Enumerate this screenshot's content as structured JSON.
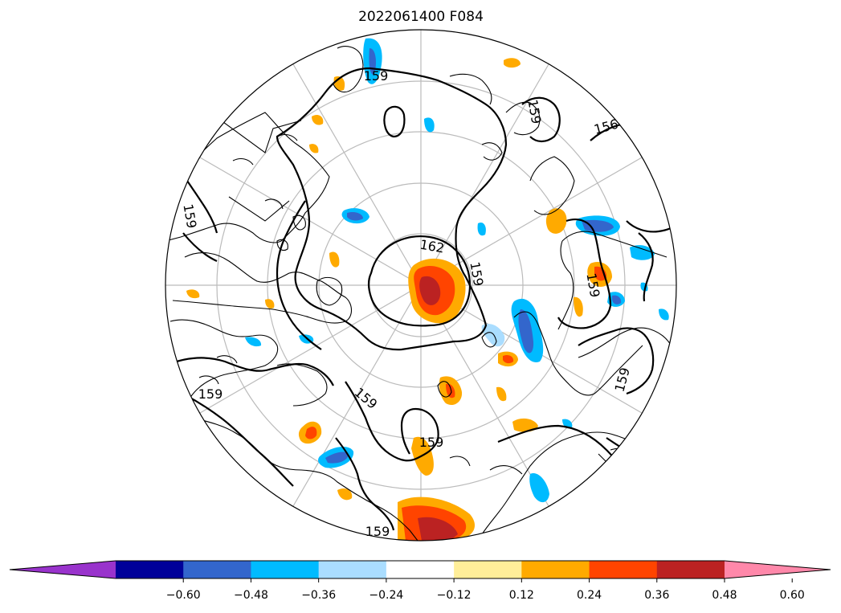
{
  "title": "2022061400 F084",
  "contour_labels": [
    "159",
    "159",
    "156",
    "159",
    "162",
    "159",
    "159",
    "159",
    "159",
    "159",
    "159",
    "159"
  ],
  "colorbar": {
    "colors": [
      "#9933cc",
      "#000099",
      "#3366cc",
      "#00bbff",
      "#aaddff",
      "#ffffff",
      "#ffee99",
      "#ffaa00",
      "#ff4400",
      "#bb2222",
      "#ff88aa"
    ],
    "ticks": [
      "−0.60",
      "−0.48",
      "−0.36",
      "−0.24",
      "−0.12",
      "0.12",
      "0.24",
      "0.36",
      "0.48",
      "0.60"
    ]
  }
}
